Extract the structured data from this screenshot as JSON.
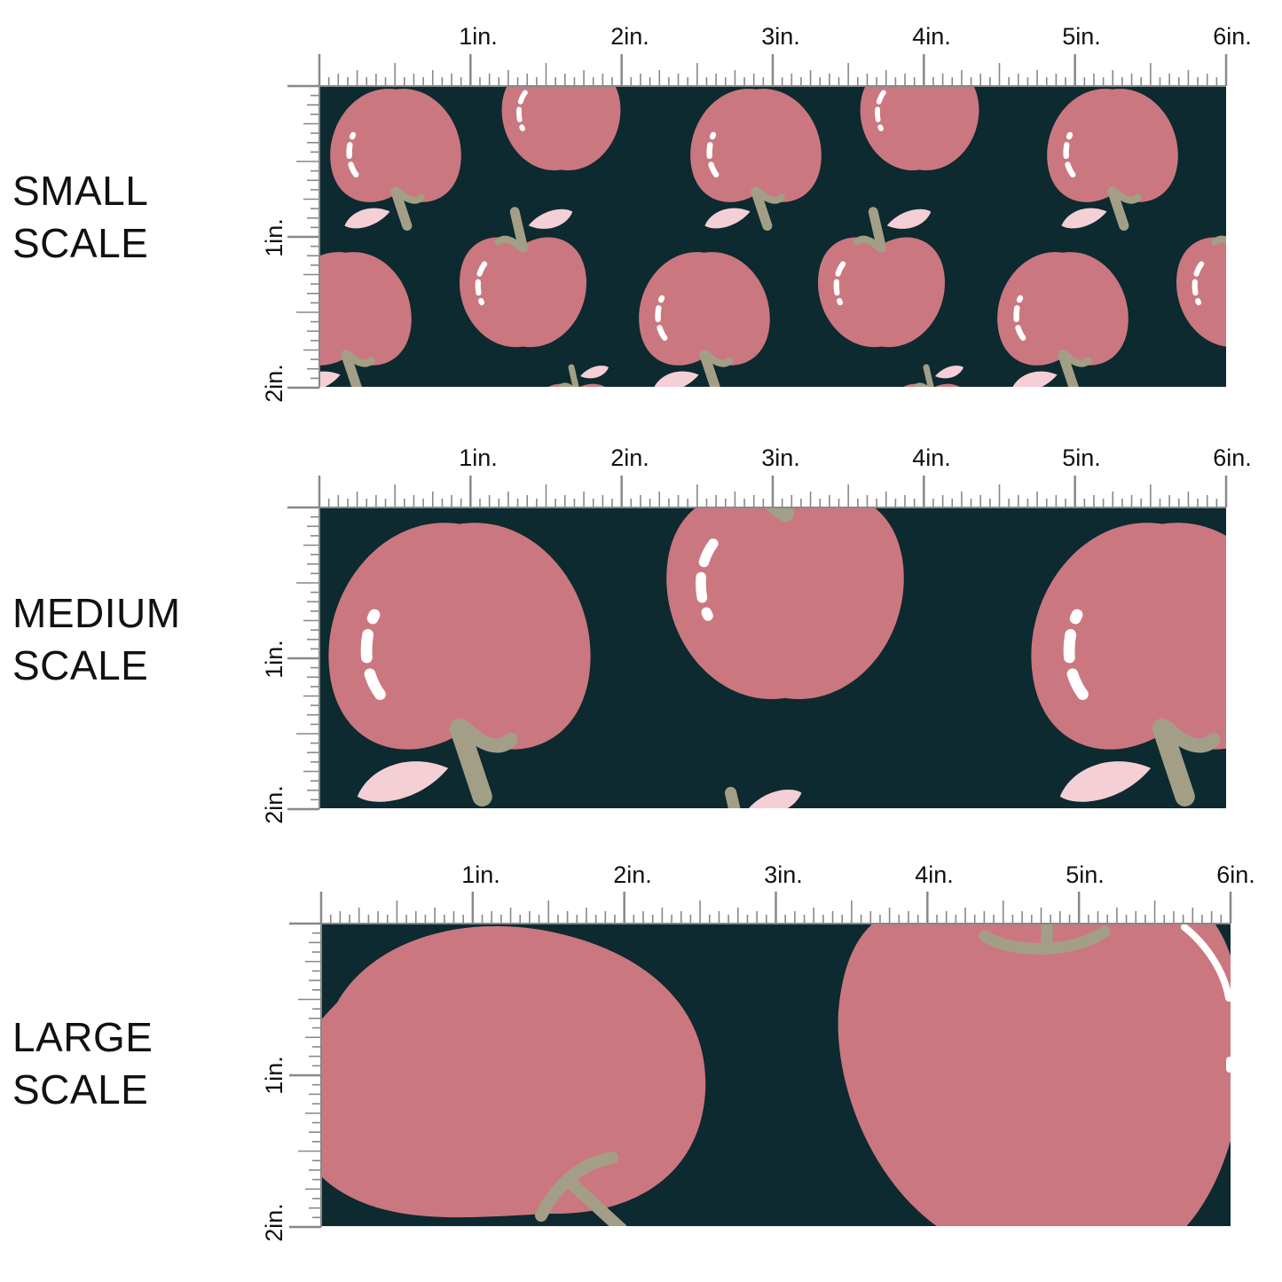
{
  "colors": {
    "background": "#0c2a2f",
    "apple": "#cb7780",
    "leaf": "#f4cfd6",
    "stem": "#a39f86",
    "shine": "#ffffff",
    "ruler": "#888888",
    "text": "#111111"
  },
  "sections": [
    {
      "title_line1": "SMALL",
      "title_line2": "SCALE",
      "ruler_top": [
        "1in.",
        "2in.",
        "3in.",
        "4in.",
        "5in.",
        "6in."
      ],
      "ruler_side": [
        "1in.",
        "2in."
      ]
    },
    {
      "title_line1": "MEDIUM",
      "title_line2": "SCALE",
      "ruler_top": [
        "1in.",
        "2in.",
        "3in.",
        "4in.",
        "5in.",
        "6in."
      ],
      "ruler_side": [
        "1in.",
        "2in."
      ]
    },
    {
      "title_line1": "LARGE",
      "title_line2": "SCALE",
      "ruler_top": [
        "1in.",
        "2in.",
        "3in.",
        "4in.",
        "5in.",
        "6in."
      ],
      "ruler_side": [
        "1in.",
        "2in."
      ]
    }
  ],
  "pattern": {
    "motif": "apple-icon",
    "motif_parts": [
      "apple-body",
      "stem",
      "leaf-icon",
      "shine-highlight"
    ]
  }
}
